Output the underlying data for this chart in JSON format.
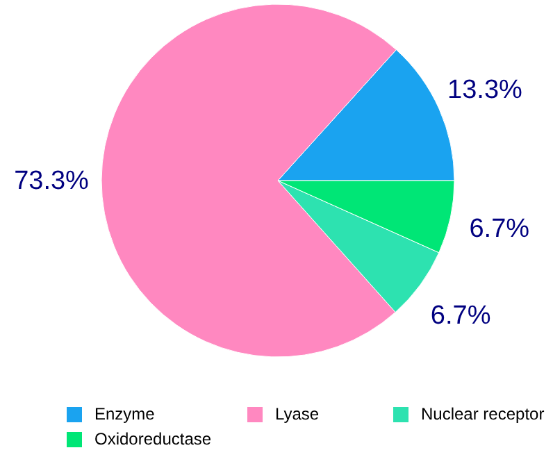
{
  "chart_data": {
    "type": "pie",
    "categories": [
      "Enzyme",
      "Lyase",
      "Nuclear receptor",
      "Oxidoreductase"
    ],
    "values": [
      13.3,
      73.3,
      6.7,
      6.7
    ],
    "colors": [
      "#1aa3f0",
      "#ff88c0",
      "#2de2b0",
      "#00e676"
    ],
    "value_labels": [
      "13.3%",
      "73.3%",
      "6.7%",
      "6.7%"
    ],
    "legend": "bottom"
  }
}
